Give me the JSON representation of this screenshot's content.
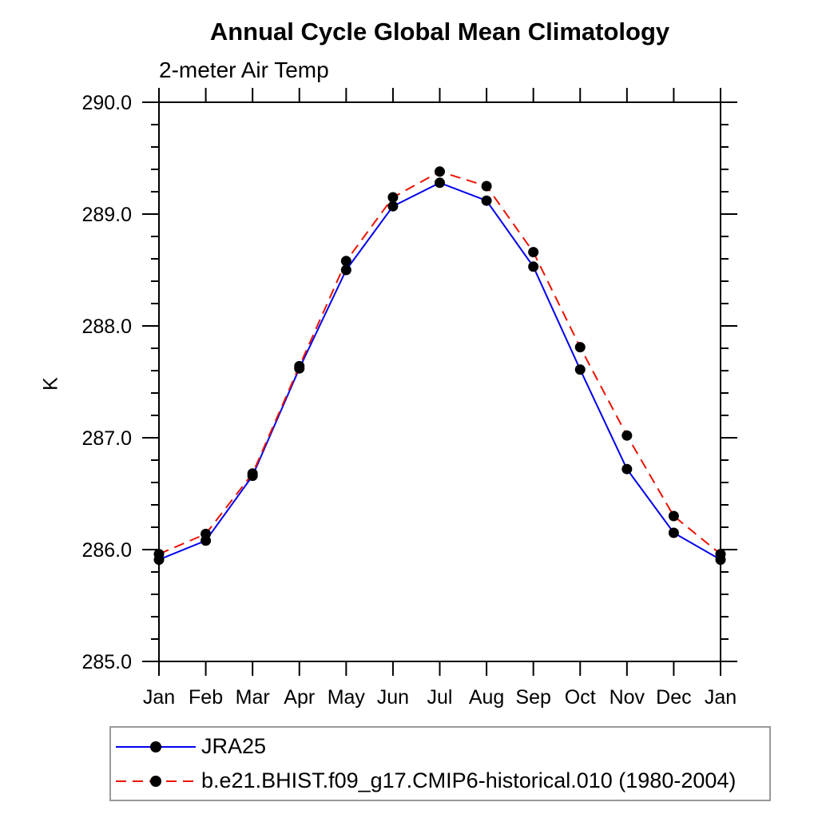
{
  "header": {
    "title": "Annual Cycle Global Mean Climatology",
    "subtitle": "2-meter Air Temp"
  },
  "chart_data": {
    "type": "line",
    "title": "Annual Cycle Global Mean Climatology",
    "subtitle": "2-meter Air Temp",
    "xlabel": "",
    "ylabel": "K",
    "categories": [
      "Jan",
      "Feb",
      "Mar",
      "Apr",
      "May",
      "Jun",
      "Jul",
      "Aug",
      "Sep",
      "Oct",
      "Nov",
      "Dec",
      "Jan"
    ],
    "series": [
      {
        "name": "JRA25",
        "color": "#0000ee",
        "line_style": "solid",
        "marker": "filled-circle",
        "marker_color": "#000000",
        "values": [
          285.91,
          286.08,
          286.66,
          287.62,
          288.5,
          289.07,
          289.28,
          289.12,
          288.53,
          287.61,
          286.72,
          286.15,
          285.91
        ]
      },
      {
        "name": "b.e21.BHIST.f09_g17.CMIP6-historical.010 (1980-2004)",
        "color": "#ee1100",
        "line_style": "dashed",
        "marker": "filled-circle",
        "marker_color": "#000000",
        "values": [
          285.96,
          286.14,
          286.68,
          287.64,
          288.58,
          289.15,
          289.38,
          289.25,
          288.66,
          287.81,
          287.02,
          286.3,
          285.96
        ]
      }
    ],
    "ylim": [
      285.0,
      290.0
    ],
    "ytick_major_values": [
      285.0,
      286.0,
      287.0,
      288.0,
      289.0,
      290.0
    ],
    "ytick_labels": [
      "285.0",
      "286.0",
      "287.0",
      "288.0",
      "289.0",
      "290.0"
    ],
    "ytick_minor_step": 0.2,
    "grid": false,
    "frame": true,
    "axis_color": "#000000",
    "legend_position": "bottom-left"
  },
  "legend": {
    "items": [
      {
        "label": "JRA25"
      },
      {
        "label": "b.e21.BHIST.f09_g17.CMIP6-historical.010 (1980-2004)"
      }
    ]
  }
}
